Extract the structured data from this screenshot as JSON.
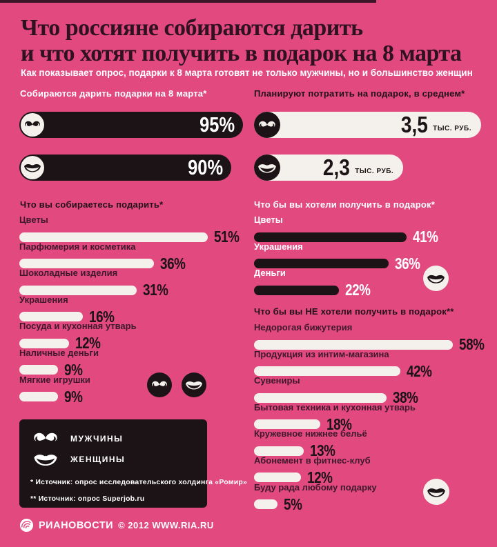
{
  "page": {
    "title_line1": "Что россияне собираются дарить",
    "title_line2": "и что хотят получить в подарок на 8 марта",
    "subtitle": "Как показывает опрос, подарки к 8 марта готовят не только мужчины, но и большинство женщин"
  },
  "colors": {
    "background": "#e1497f",
    "dark": "#1c1316",
    "off_white": "#f4f1ec",
    "title_text": "#2f1120",
    "label_maroon": "#3d192b"
  },
  "icons": {
    "men": "mustache-icon",
    "women": "lips-icon",
    "brand": "ria-globe-icon"
  },
  "legend": {
    "men_label": "МУЖЧИНЫ",
    "women_label": "ЖЕНЩИНЫ",
    "source1": "* Источник: опрос исследовательского холдинга «Ромир»",
    "source2": "** Источник: опрос Superjob.ru"
  },
  "footer": {
    "brand": "РИАНОВОСТИ",
    "copyright": "© 2012 WWW.RIA.RU"
  },
  "chart_data": [
    {
      "type": "bar",
      "title": "Собираются дарить подарки на 8 марта*",
      "categories": [
        "Мужчины",
        "Женщины"
      ],
      "values": [
        95,
        90
      ],
      "display": [
        "95%",
        "90%"
      ],
      "unit": "%",
      "style": "dark bars on pink, white icon circles"
    },
    {
      "type": "bar",
      "title": "Планируют потратить на подарок, в среднем*",
      "categories": [
        "Мужчины",
        "Женщины"
      ],
      "values": [
        3.5,
        2.3
      ],
      "display": [
        "3,5",
        "2,3"
      ],
      "unit_label": "ТЫС. РУБ.",
      "unit": "тыс. руб.",
      "style": "white bars on pink, black icon circles"
    },
    {
      "type": "bar",
      "title": "Что вы собираетесь подарить*",
      "categories": [
        "Цветы",
        "Парфюмерия и косметика",
        "Шоколадные изделия",
        "Украшения",
        "Посуда и кухонная утварь",
        "Наличные деньги",
        "Мягкие игрушки"
      ],
      "values": [
        51,
        36,
        31,
        16,
        12,
        9,
        9
      ],
      "display": [
        "51%",
        "36%",
        "31%",
        "16%",
        "12%",
        "9%",
        "9%"
      ],
      "unit": "%"
    },
    {
      "type": "bar",
      "title": "Что бы вы хотели получить в подарок*",
      "categories": [
        "Цветы",
        "Украшения",
        "Деньги"
      ],
      "values": [
        41,
        36,
        22
      ],
      "display": [
        "41%",
        "36%",
        "22%"
      ],
      "unit": "%"
    },
    {
      "type": "bar",
      "title": "Что бы вы НЕ хотели получить в подарок**",
      "categories": [
        "Недорогая бижутерия",
        "Продукция из интим-магазина",
        "Сувениры",
        "Бытовая техника и кухонная утварь",
        "Кружевное нижнее бельё",
        "Абонемент в фитнес-клуб",
        "Буду рада любому подарку"
      ],
      "values": [
        58,
        42,
        38,
        18,
        13,
        12,
        5
      ],
      "display": [
        "58%",
        "42%",
        "38%",
        "18%",
        "13%",
        "12%",
        "5%"
      ],
      "unit": "%"
    }
  ]
}
